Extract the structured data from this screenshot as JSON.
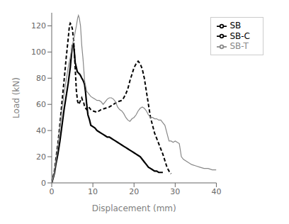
{
  "chart_data": {
    "type": "line",
    "xlabel": "Displacement (mm)",
    "ylabel": "Load (kN)",
    "xlim": [
      0,
      40
    ],
    "ylim": [
      0,
      130
    ],
    "xticks": [
      0,
      10,
      20,
      30,
      40
    ],
    "yticks": [
      0,
      20,
      40,
      60,
      80,
      100,
      120
    ],
    "grid": false,
    "legend": "upper right",
    "series": [
      {
        "name": "SB",
        "color": "black",
        "line_style": "solid",
        "x": [
          0,
          0.3,
          0.7,
          1.0,
          1.5,
          2.0,
          2.5,
          3.0,
          3.5,
          4.0,
          4.5,
          5.0,
          5.3,
          5.5,
          5.7,
          6.0,
          6.2,
          6.5,
          6.8,
          7.0,
          7.3,
          7.5,
          7.8,
          8.0,
          8.2,
          8.5,
          8.8,
          9.0,
          9.2,
          9.5,
          10.0,
          10.5,
          11.0,
          11.5,
          12.0,
          12.5,
          13.0,
          13.5,
          14.0,
          14.5,
          15.0,
          15.5,
          16.0,
          16.5,
          17.0,
          17.5,
          18.0,
          18.5,
          19.0,
          19.5,
          20.0,
          20.5,
          21.0,
          21.5,
          22.0,
          22.5,
          23.0,
          23.5,
          24.0,
          24.5,
          25.0,
          25.5,
          26.0,
          26.5,
          27.0
        ],
        "values": [
          0,
          3,
          8,
          14,
          22,
          32,
          44,
          56,
          66,
          76,
          88,
          105,
          106,
          100,
          92,
          88,
          85,
          84,
          83,
          82,
          80,
          79,
          77,
          75,
          70,
          60,
          52,
          50,
          48,
          44,
          43,
          42,
          40,
          39,
          38,
          37,
          36,
          35,
          35,
          34,
          33,
          32,
          31,
          30,
          29,
          28,
          27,
          26,
          25,
          24,
          23,
          22,
          21,
          20,
          18,
          16,
          14,
          12,
          11,
          10,
          9,
          9,
          8,
          8,
          8
        ]
      },
      {
        "name": "SB-C",
        "color": "black",
        "line_style": "dashed",
        "x": [
          0,
          0.3,
          0.7,
          1.0,
          1.5,
          2.0,
          2.5,
          3.0,
          3.5,
          4.0,
          4.3,
          4.5,
          4.7,
          5.0,
          5.3,
          5.5,
          5.7,
          6.0,
          6.3,
          6.6,
          7.0,
          7.3,
          7.5,
          7.8,
          8.0,
          8.5,
          9.0,
          9.5,
          10.0,
          11.0,
          12.0,
          13.0,
          14.0,
          15.0,
          16.0,
          17.0,
          17.5,
          18.0,
          18.5,
          19.0,
          19.5,
          20.0,
          20.5,
          21.0,
          21.5,
          22.0,
          22.5,
          23.0,
          23.5,
          24.0,
          25.0,
          26.0,
          27.0,
          27.5,
          28.0,
          28.5,
          29.0
        ],
        "values": [
          0,
          4,
          10,
          18,
          30,
          45,
          62,
          78,
          95,
          110,
          120,
          122,
          121,
          118,
          110,
          100,
          88,
          70,
          62,
          60,
          63,
          65,
          63,
          61,
          58,
          56,
          58,
          56,
          55,
          54,
          56,
          57,
          58,
          60,
          62,
          63,
          65,
          68,
          72,
          78,
          83,
          88,
          91,
          93,
          91,
          87,
          80,
          70,
          60,
          50,
          38,
          30,
          22,
          17,
          12,
          9,
          7
        ]
      },
      {
        "name": "SB-T",
        "color": "#888888",
        "line_style": "solid",
        "x": [
          0,
          0.3,
          0.7,
          1.0,
          1.5,
          2.0,
          2.5,
          3.0,
          3.5,
          4.0,
          4.5,
          5.0,
          5.5,
          6.0,
          6.3,
          6.5,
          6.7,
          7.0,
          7.3,
          7.6,
          8.0,
          8.5,
          9.0,
          9.5,
          10.0,
          10.5,
          11.0,
          11.5,
          12.0,
          12.5,
          13.0,
          13.5,
          14.0,
          14.5,
          15.0,
          15.5,
          16.0,
          16.5,
          17.0,
          17.5,
          18.0,
          18.5,
          19.0,
          19.5,
          20.0,
          20.5,
          21.0,
          21.5,
          22.0,
          22.5,
          23.0,
          23.5,
          24.0,
          24.5,
          25.0,
          25.5,
          26.0,
          26.5,
          27.0,
          27.5,
          28.0,
          28.5,
          29.0,
          29.5,
          30.0,
          30.5,
          31.0,
          31.5,
          32.0,
          33.0,
          34.0,
          35.0,
          36.0,
          37.0,
          38.0,
          39.0,
          40.0
        ],
        "values": [
          0,
          3,
          9,
          16,
          28,
          42,
          56,
          68,
          78,
          88,
          96,
          105,
          112,
          120,
          126,
          128,
          126,
          120,
          105,
          95,
          78,
          70,
          68,
          66,
          65,
          64,
          63,
          63,
          62,
          60,
          62,
          64,
          65,
          65,
          64,
          62,
          58,
          56,
          55,
          53,
          50,
          48,
          47,
          49,
          50,
          52,
          55,
          57,
          58,
          57,
          55,
          52,
          50,
          50,
          49,
          49,
          48,
          48,
          46,
          44,
          38,
          32,
          32,
          31,
          32,
          31,
          30,
          20,
          18,
          16,
          14,
          13,
          12,
          11,
          11,
          10,
          10
        ]
      }
    ]
  }
}
